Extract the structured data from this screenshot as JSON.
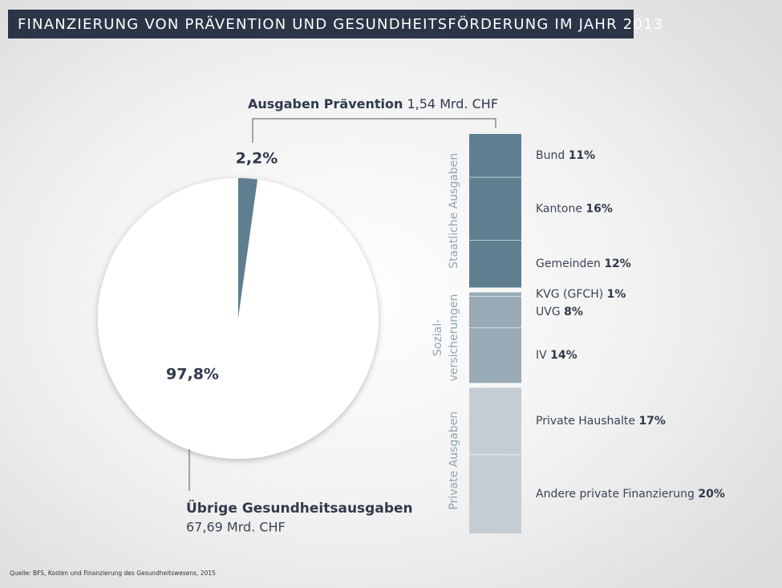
{
  "title": "FINANZIERUNG VON PRÄVENTION UND GESUNDHEITSFÖRDERUNG IM JAHR 2013",
  "source": "Quelle: BFS, Kosten und Finanzierung des Gesundheitswesens, 2015",
  "chart_data": [
    {
      "type": "pie",
      "categories": [
        "Ausgaben Prävention",
        "Übrige Gesundheitsausgaben"
      ],
      "values": [
        2.2,
        97.8
      ],
      "value_labels": [
        "2,2%",
        "97,8%"
      ],
      "amount_labels": [
        "1,54 Mrd. CHF",
        "67,69 Mrd. CHF"
      ],
      "colors": [
        "#5e7e90",
        "#ffffff"
      ]
    },
    {
      "type": "stacked-bar",
      "series": [
        {
          "name": [
            "Staatliche Ausgaben"
          ],
          "color": "#5f7f91",
          "categories": [
            "Bund",
            "Kantone",
            "Gemeinden"
          ],
          "values": [
            11,
            16,
            12
          ],
          "value_labels": [
            "11%",
            "16%",
            "12%"
          ]
        },
        {
          "name": [
            "Sozial-",
            "versicherungen"
          ],
          "color": "#98abb6",
          "categories": [
            "KVG (GFCH)",
            "UVG",
            "IV"
          ],
          "values": [
            1,
            8,
            14
          ],
          "value_labels": [
            "1%",
            "8%",
            "14%"
          ]
        },
        {
          "name": [
            "Private Ausgaben"
          ],
          "color": "#c5cdd4",
          "categories": [
            "Private Haushalte",
            "Andere private Finanzierung"
          ],
          "values": [
            17,
            20
          ],
          "value_labels": [
            "17%",
            "20%"
          ]
        }
      ]
    }
  ]
}
